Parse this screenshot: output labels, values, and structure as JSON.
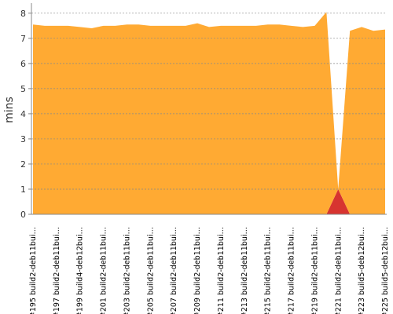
{
  "chart_data": {
    "type": "stacked-area",
    "y_label": "mins",
    "categories": [
      "#195 build2-deb11bui…",
      null,
      "#197 build2-deb11bui…",
      null,
      "#199 build4-deb12bui…",
      null,
      "#201 build2-deb11bui…",
      null,
      "#203 build2-deb11bui…",
      null,
      "#205 build2-deb11bui…",
      null,
      "#207 build2-deb11bui…",
      null,
      "#209 build2-deb11bui…",
      null,
      "#211 build2-deb11bui…",
      null,
      "#213 build2-deb11bui…",
      null,
      "#215 build2-deb11bui…",
      null,
      "#217 build2-deb11bui…",
      null,
      "#219 build2-deb11bui…",
      null,
      "#221 build2-deb11bui…",
      null,
      "#223 build5-deb12bui…",
      null,
      "#225 build5-deb12bui…"
    ],
    "series": [
      {
        "color": "#d73430",
        "values": [
          0,
          0,
          0,
          0,
          0,
          0,
          0,
          0,
          0,
          0,
          0,
          0,
          0,
          0,
          0,
          0,
          0,
          0,
          0,
          0,
          0,
          0,
          0,
          0,
          0,
          0,
          1.0,
          0,
          0,
          0,
          0
        ]
      },
      {
        "color": "#ffaa33",
        "values": [
          7.55,
          7.5,
          7.5,
          7.5,
          7.45,
          7.4,
          7.5,
          7.5,
          7.55,
          7.55,
          7.5,
          7.5,
          7.5,
          7.5,
          7.6,
          7.45,
          7.5,
          7.5,
          7.5,
          7.5,
          7.55,
          7.55,
          7.5,
          7.45,
          7.5,
          8.05,
          0,
          7.3,
          7.45,
          7.3,
          7.35
        ]
      }
    ],
    "ylim": [
      0,
      8.4
    ],
    "yticks": [
      0,
      1,
      2,
      3,
      4,
      5,
      6,
      7,
      8
    ],
    "grid": true
  }
}
